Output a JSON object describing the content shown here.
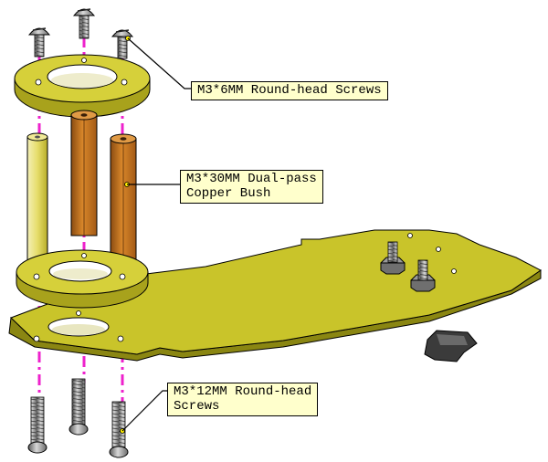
{
  "labels": {
    "round_head_6": "M3*6MM Round-head Screws",
    "copper_bush": "M3*30MM Dual-pass\nCopper Bush",
    "round_head_12": "M3*12MM Round-head\nScrews"
  },
  "colors": {
    "plate": "#c9c42a",
    "plate_dark": "#8a8612",
    "copper": "#c7761e",
    "copper_dark": "#7a4510",
    "screw": "#8e8e8e",
    "guide": "#ee22cc",
    "label_bg": "#ffffcc"
  }
}
